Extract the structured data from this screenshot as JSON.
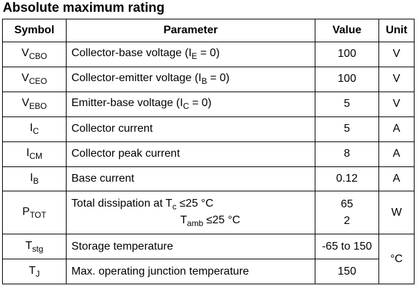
{
  "title": "Absolute maximum rating",
  "headers": {
    "symbol": "Symbol",
    "parameter": "Parameter",
    "value": "Value",
    "unit": "Unit"
  },
  "rows": [
    {
      "sym_main": "V",
      "sym_sub": "CBO",
      "par_pre": "Collector-base voltage (I",
      "par_sub": "E",
      "par_post": " = 0)",
      "value": "100",
      "unit": "V"
    },
    {
      "sym_main": "V",
      "sym_sub": "CEO",
      "par_pre": "Collector-emitter voltage (I",
      "par_sub": "B",
      "par_post": " = 0)",
      "value": "100",
      "unit": "V"
    },
    {
      "sym_main": "V",
      "sym_sub": "EBO",
      "par_pre": "Emitter-base voltage (I",
      "par_sub": "C",
      "par_post": " = 0)",
      "value": "5",
      "unit": "V"
    },
    {
      "sym_main": "I",
      "sym_sub": "C",
      "par_pre": "Collector current",
      "value": "5",
      "unit": "A"
    },
    {
      "sym_main": "I",
      "sym_sub": "CM",
      "par_pre": "Collector peak current",
      "value": "8",
      "unit": "A"
    },
    {
      "sym_main": "I",
      "sym_sub": "B",
      "par_pre": "Base current",
      "value": "0.12",
      "unit": "A"
    },
    {
      "sym_main": "P",
      "sym_sub": "TOT",
      "par_line1_pre": "Total dissipation at T",
      "par_line1_sub": "c",
      "par_line1_post": " ≤25 °C",
      "par_line2_pre": "T",
      "par_line2_sub": "amb",
      "par_line2_post": " ≤25 °C",
      "value1": "65",
      "value2": "2",
      "unit": "W"
    },
    {
      "sym_main": "T",
      "sym_sub": "stg",
      "par_pre": "Storage temperature",
      "value": "-65 to 150"
    },
    {
      "sym_main": "T",
      "sym_sub": "J",
      "par_pre": "Max. operating junction temperature",
      "value": "150"
    }
  ],
  "temp_unit": "°C"
}
